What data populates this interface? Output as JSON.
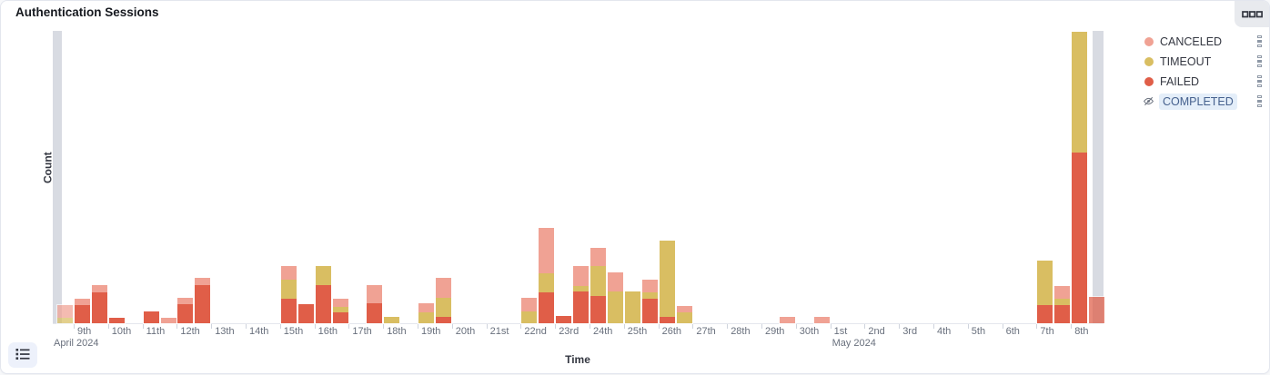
{
  "header": {
    "title": "Authentication Sessions",
    "options_button": "panel-options (boxes icon)"
  },
  "footer": {
    "legend_toggle_button": "toggle-legend (list icon)"
  },
  "colors": {
    "canceled": "#F0A294",
    "timeout": "#D9BE62",
    "failed": "#E05E48",
    "partial_band": "#D8DBE2",
    "completed_text": "#46618E",
    "completed_bg": "#E4EEF9",
    "axis_text": "#69707D",
    "axis_title_text": "#343741"
  },
  "legend": {
    "items": [
      {
        "label": "CANCELED",
        "color": "#F0A294",
        "hidden": false
      },
      {
        "label": "TIMEOUT",
        "color": "#D9BE62",
        "hidden": false
      },
      {
        "label": "FAILED",
        "color": "#E05E48",
        "hidden": false
      },
      {
        "label": "COMPLETED",
        "color": null,
        "hidden": true
      }
    ]
  },
  "chart_data": {
    "type": "bar",
    "stacked": true,
    "title": "Authentication Sessions",
    "xlabel": "Time",
    "ylabel": "Count",
    "grid": false,
    "legend_position": "right",
    "y_axis_tick_labels": "none visible (values below are proportional px heights, plot height = 322)",
    "ylim": [
      0,
      322
    ],
    "x_range": "April 8 2024 – May 8 2024, 12-hour buckets",
    "stack_order_bottom_to_top": [
      "FAILED",
      "TIMEOUT",
      "CANCELED"
    ],
    "hidden_series": [
      "COMPLETED"
    ],
    "x_tick_labels": [
      "9th",
      "10th",
      "11th",
      "12th",
      "13th",
      "14th",
      "15th",
      "16th",
      "17th",
      "18th",
      "19th",
      "20th",
      "21st",
      "22nd",
      "23rd",
      "24th",
      "25th",
      "26th",
      "27th",
      "28th",
      "29th",
      "30th",
      "1st",
      "2nd",
      "3rd",
      "4th",
      "5th",
      "6th",
      "7th",
      "8th"
    ],
    "month_labels": [
      {
        "label": "April 2024",
        "tick": 0,
        "dx": -22
      },
      {
        "label": "May 2024",
        "tick": 22,
        "dx": 2
      }
    ],
    "partial_bucket_bands": [
      {
        "x": 0,
        "w": 10
      },
      {
        "x": 1143,
        "w": 12
      }
    ],
    "buckets": [
      {
        "label": "Apr 8 PM",
        "x": 4,
        "failed": 0,
        "timeout": 6,
        "canceled": 14,
        "partial": true
      },
      {
        "label": "Apr 9 AM",
        "x": 23,
        "failed": 20,
        "timeout": 0,
        "canceled": 7
      },
      {
        "label": "Apr 9 PM",
        "x": 42,
        "failed": 34,
        "timeout": 0,
        "canceled": 8
      },
      {
        "label": "Apr 10 AM",
        "x": 61,
        "failed": 6,
        "timeout": 0,
        "canceled": 0
      },
      {
        "label": "Apr 11 AM",
        "x": 99,
        "failed": 13,
        "timeout": 0,
        "canceled": 0
      },
      {
        "label": "Apr 11 PM",
        "x": 118,
        "failed": 0,
        "timeout": 0,
        "canceled": 6
      },
      {
        "label": "Apr 12 AM",
        "x": 136,
        "failed": 21,
        "timeout": 0,
        "canceled": 7
      },
      {
        "label": "Apr 12 PM",
        "x": 155,
        "failed": 42,
        "timeout": 0,
        "canceled": 8
      },
      {
        "label": "Apr 15 AM",
        "x": 250,
        "failed": 27,
        "timeout": 21,
        "canceled": 15
      },
      {
        "label": "Apr 15 PM",
        "x": 269,
        "failed": 21,
        "timeout": 0,
        "canceled": 0
      },
      {
        "label": "Apr 16 AM",
        "x": 288,
        "failed": 42,
        "timeout": 21,
        "canceled": 0
      },
      {
        "label": "Apr 16 PM",
        "x": 307,
        "failed": 12,
        "timeout": 6,
        "canceled": 9
      },
      {
        "label": "Apr 17 PM",
        "x": 344,
        "failed": 22,
        "timeout": 0,
        "canceled": 20
      },
      {
        "label": "Apr 18 AM",
        "x": 363,
        "failed": 0,
        "timeout": 7,
        "canceled": 0
      },
      {
        "label": "Apr 19 AM",
        "x": 401,
        "failed": 0,
        "timeout": 12,
        "canceled": 10
      },
      {
        "label": "Apr 19 PM",
        "x": 420,
        "failed": 7,
        "timeout": 21,
        "canceled": 22
      },
      {
        "label": "Apr 22 AM",
        "x": 514,
        "failed": 0,
        "timeout": 13,
        "canceled": 15
      },
      {
        "label": "Apr 22 PM",
        "x": 533,
        "failed": 34,
        "timeout": 21,
        "canceled": 50
      },
      {
        "label": "Apr 23 AM",
        "x": 552,
        "failed": 8,
        "timeout": 0,
        "canceled": 0
      },
      {
        "label": "Apr 23 PM",
        "x": 571,
        "failed": 35,
        "timeout": 6,
        "canceled": 22
      },
      {
        "label": "Apr 24 AM",
        "x": 590,
        "failed": 30,
        "timeout": 33,
        "canceled": 20
      },
      {
        "label": "Apr 24 PM",
        "x": 609,
        "failed": 0,
        "timeout": 35,
        "canceled": 21
      },
      {
        "label": "Apr 25 AM",
        "x": 628,
        "failed": 0,
        "timeout": 35,
        "canceled": 0
      },
      {
        "label": "Apr 25 PM",
        "x": 647,
        "failed": 27,
        "timeout": 7,
        "canceled": 14
      },
      {
        "label": "Apr 26 AM",
        "x": 666,
        "failed": 7,
        "timeout": 84,
        "canceled": 0
      },
      {
        "label": "Apr 26 PM",
        "x": 685,
        "failed": 0,
        "timeout": 12,
        "canceled": 7
      },
      {
        "label": "Apr 29 PM",
        "x": 798,
        "failed": 0,
        "timeout": 0,
        "canceled": 7
      },
      {
        "label": "Apr 30 PM",
        "x": 836,
        "failed": 0,
        "timeout": 0,
        "canceled": 7
      },
      {
        "label": "May 7 AM",
        "x": 1081,
        "failed": 20,
        "timeout": 49,
        "canceled": 0
      },
      {
        "label": "May 7 PM",
        "x": 1100,
        "failed": 20,
        "timeout": 7,
        "canceled": 14
      },
      {
        "label": "May 8 AM",
        "x": 1119,
        "failed": 188,
        "timeout": 133,
        "canceled": 0
      },
      {
        "label": "May 8 PM",
        "x": 1138,
        "failed": 29,
        "timeout": 0,
        "canceled": 0,
        "partial": true
      }
    ]
  }
}
